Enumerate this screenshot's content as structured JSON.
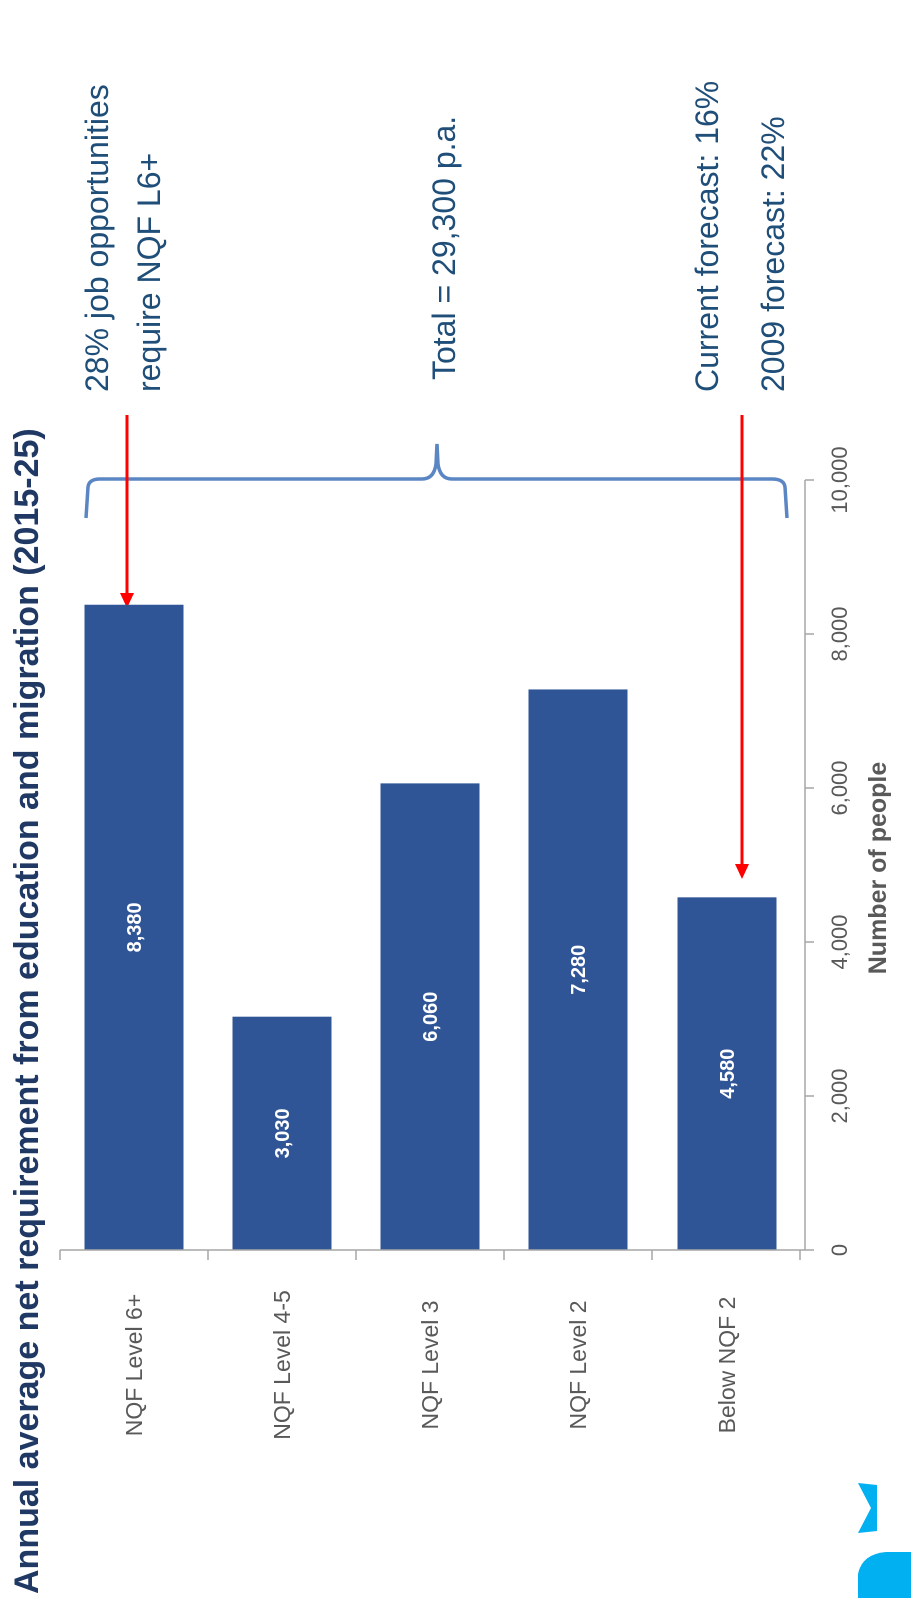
{
  "colors": {
    "bar": "#2f5597",
    "title": "#1f3864",
    "annotation_text": "#1f4e79",
    "brace": "#5b86c4",
    "arrow": "#ff0000",
    "axis": "#a6a6a6",
    "label_text": "#595959",
    "value_label": "#ffffff",
    "logo": "#00b0f0"
  },
  "annotations": {
    "brace_label": "Total = 29,300 p.a.",
    "top_line1": "28% job opportunities",
    "top_line2": "require NQF L6+",
    "bottom_line1": "Current forecast: 16%",
    "bottom_line2": "2009 forecast:  22%"
  },
  "logo": "logo-icon",
  "chart_data": {
    "type": "bar",
    "orientation": "vertical",
    "title": "Annual average net requirement from education and migration (2015-25)",
    "categories": [
      "NQF Level 6+",
      "NQF Level 4-5",
      "NQF Level 3",
      "NQF Level 2",
      "Below NQF 2"
    ],
    "values": [
      8380,
      3030,
      6060,
      7280,
      4580
    ],
    "value_labels": [
      "8,380",
      "3,030",
      "6,060",
      "7,280",
      "4,580"
    ],
    "ylabel": "Number of people",
    "xlabel": "",
    "ylim": [
      0,
      10000
    ],
    "yticks": [
      0,
      2000,
      4000,
      6000,
      8000,
      10000
    ],
    "ytick_labels": [
      "0",
      "2,000",
      "4,000",
      "6,000",
      "8,000",
      "10,000"
    ],
    "grid": false,
    "legend": "none"
  }
}
